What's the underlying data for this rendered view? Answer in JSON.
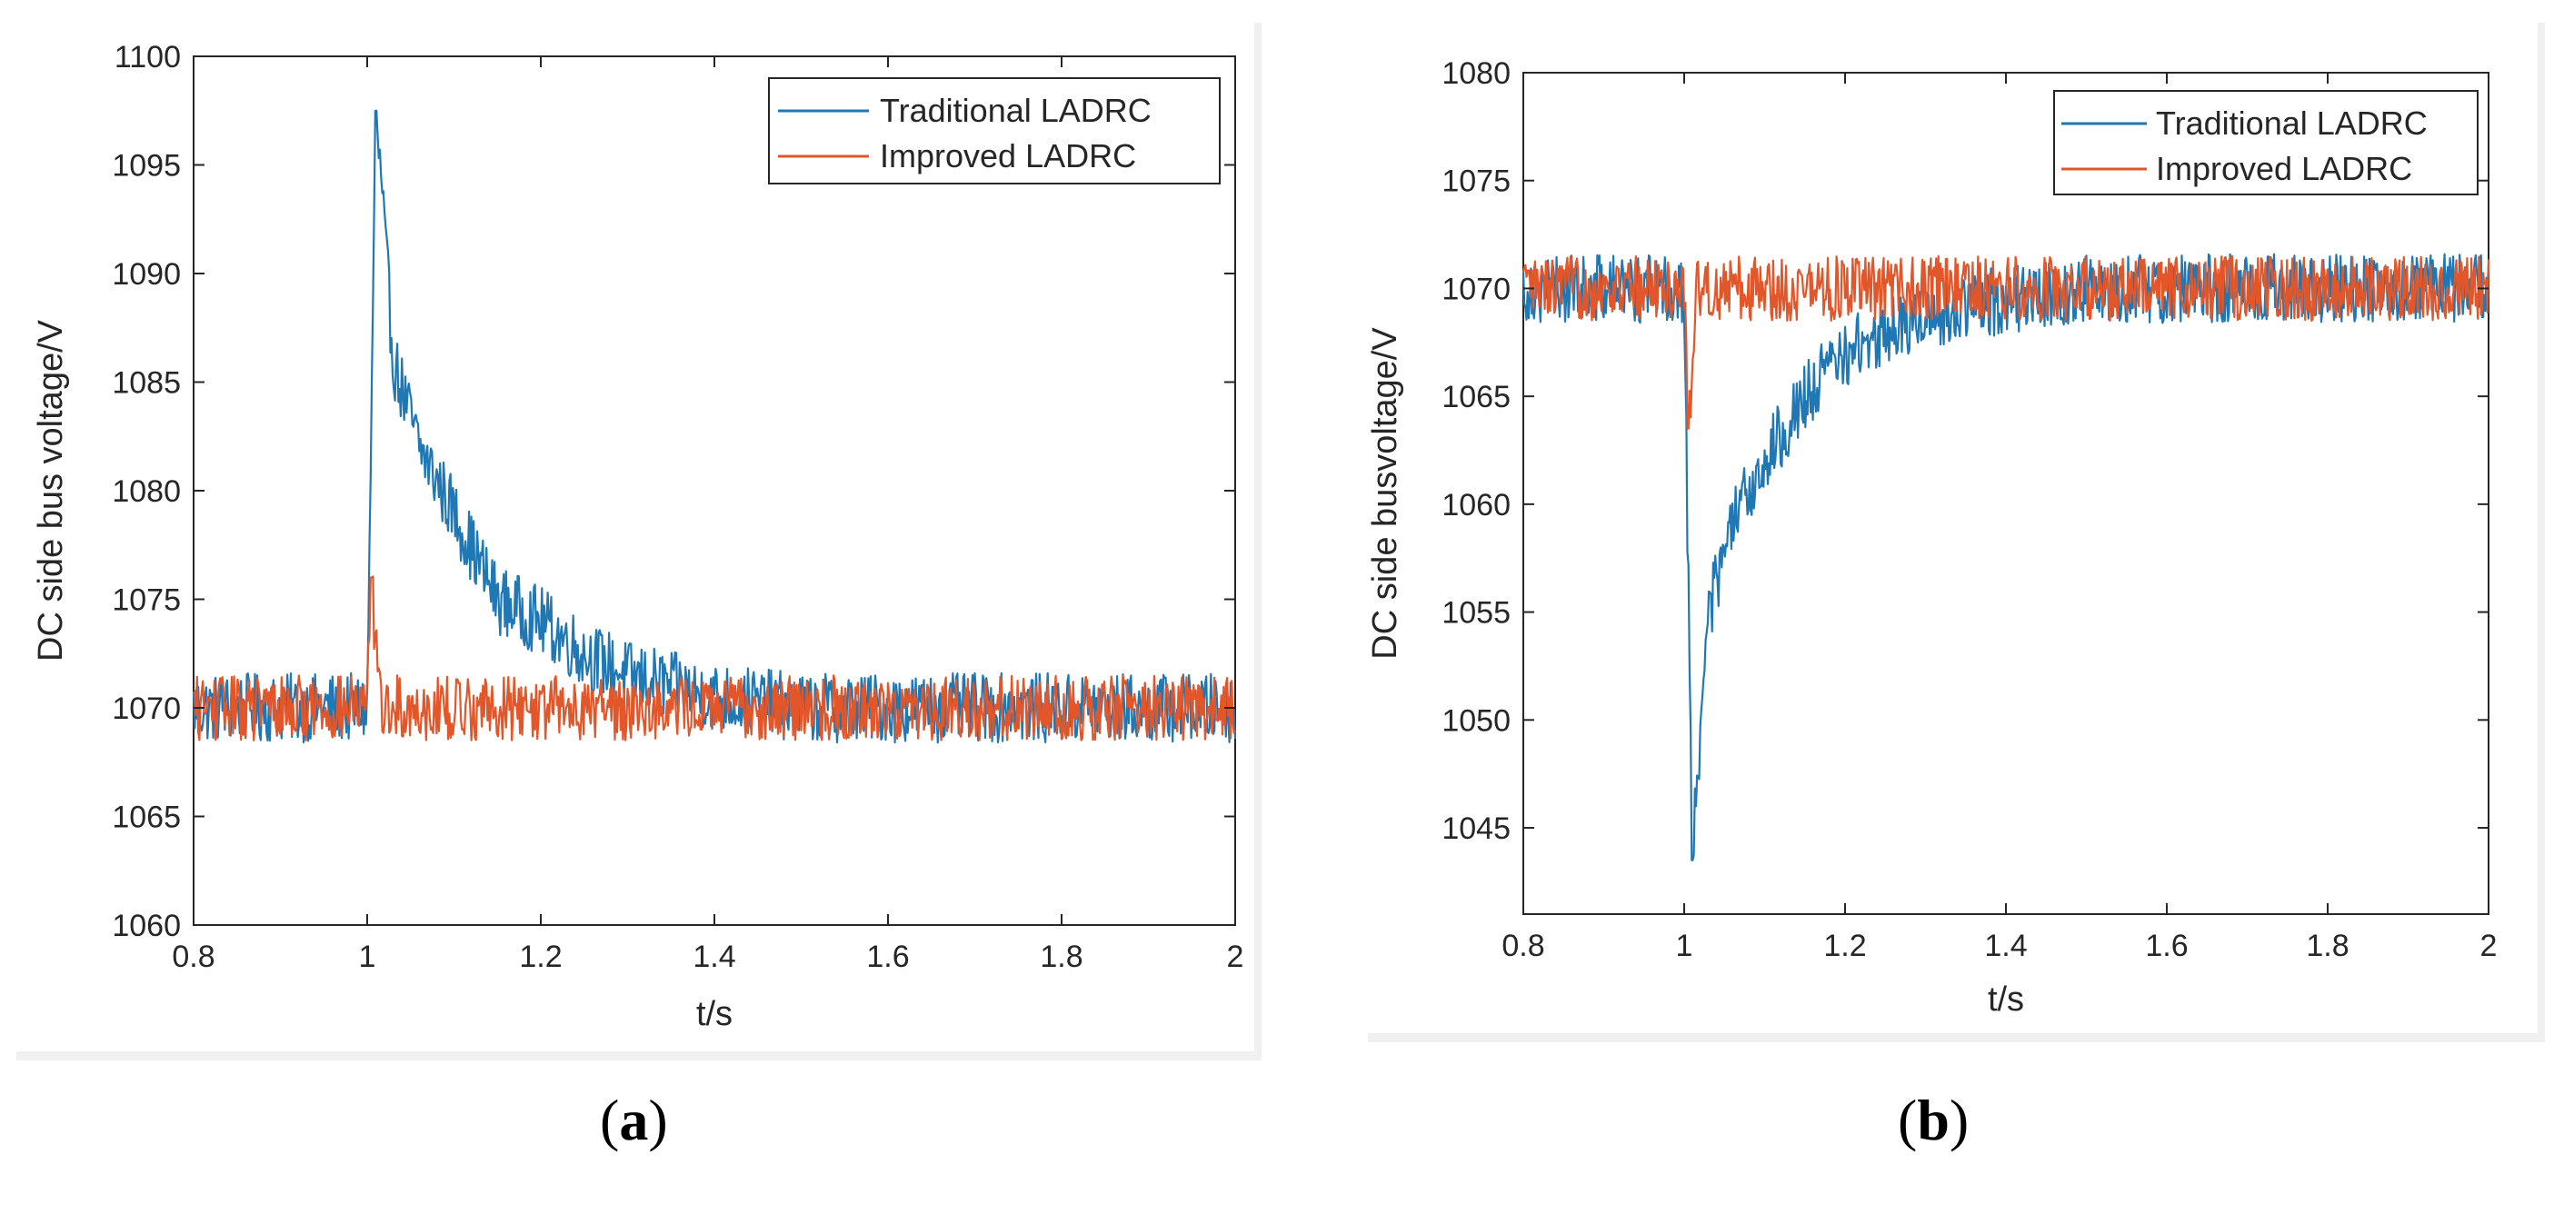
{
  "colors": {
    "traditional": "#1f77b4",
    "improved": "#e2562a",
    "axis": "#262626",
    "panel_bg": "#f0f0f0"
  },
  "captions": {
    "a": {
      "open": "(",
      "letter": "a",
      "close": ")"
    },
    "b": {
      "open": "(",
      "letter": "b",
      "close": ")"
    }
  },
  "chart_data": [
    {
      "id": "a",
      "type": "line",
      "title": "",
      "xlabel": "t/s",
      "ylabel": "DC side bus voltage/V",
      "xlim": [
        0.8,
        2.0
      ],
      "ylim": [
        1060,
        1100
      ],
      "xticks": [
        "0.8",
        "1",
        "1.2",
        "1.4",
        "1.6",
        "1.8",
        "2"
      ],
      "xtick_values": [
        0.8,
        1.0,
        1.2,
        1.4,
        1.6,
        1.8,
        2.0
      ],
      "yticks": [
        "1060",
        "1065",
        "1070",
        "1075",
        "1080",
        "1085",
        "1090",
        "1095",
        "1100"
      ],
      "ytick_values": [
        1060,
        1065,
        1070,
        1075,
        1080,
        1085,
        1090,
        1095,
        1100
      ],
      "legend": [
        "Traditional LADRC",
        "Improved LADRC"
      ],
      "legend_position": "top-right",
      "grid": false,
      "series": [
        {
          "name": "Traditional LADRC",
          "baseline": 1070,
          "noise_amplitude": 1.6,
          "event_time": 1.0,
          "peak_time": 1.01,
          "peak_value": 1097.5,
          "recovery_points": [
            [
              1.03,
              1086
            ],
            [
              1.06,
              1082
            ],
            [
              1.1,
              1079
            ],
            [
              1.15,
              1075
            ],
            [
              1.2,
              1074
            ],
            [
              1.25,
              1072.5
            ],
            [
              1.3,
              1071.5
            ],
            [
              1.4,
              1070.5
            ],
            [
              1.5,
              1070
            ]
          ]
        },
        {
          "name": "Improved LADRC",
          "baseline": 1070,
          "noise_amplitude": 1.5,
          "event_time": 1.0,
          "peak_time": 1.005,
          "peak_value": 1076,
          "recovery_points": [
            [
              1.015,
              1070
            ]
          ]
        }
      ]
    },
    {
      "id": "b",
      "type": "line",
      "title": "",
      "xlabel": "t/s",
      "ylabel": "DC side busvoltage/V",
      "xlim": [
        0.8,
        2.0
      ],
      "ylim": [
        1041,
        1080
      ],
      "xticks": [
        "0.8",
        "1",
        "1.2",
        "1.4",
        "1.6",
        "1.8",
        "2"
      ],
      "xtick_values": [
        0.8,
        1.0,
        1.2,
        1.4,
        1.6,
        1.8,
        2.0
      ],
      "yticks": [
        "1045",
        "1050",
        "1055",
        "1060",
        "1065",
        "1070",
        "1075",
        "1080"
      ],
      "ytick_values": [
        1045,
        1050,
        1055,
        1060,
        1065,
        1070,
        1075,
        1080
      ],
      "legend": [
        "Traditional LADRC",
        "Improved LADRC"
      ],
      "legend_position": "top-right",
      "grid": false,
      "series": [
        {
          "name": "Traditional LADRC",
          "baseline": 1070,
          "noise_amplitude": 1.6,
          "event_time": 1.0,
          "peak_time": 1.01,
          "peak_value": 1043.5,
          "recovery_points": [
            [
              1.03,
              1055
            ],
            [
              1.06,
              1059
            ],
            [
              1.1,
              1062
            ],
            [
              1.15,
              1065
            ],
            [
              1.2,
              1067
            ],
            [
              1.3,
              1068.8
            ],
            [
              1.4,
              1069.5
            ],
            [
              1.5,
              1070
            ]
          ]
        },
        {
          "name": "Improved LADRC",
          "baseline": 1070,
          "noise_amplitude": 1.5,
          "event_time": 1.0,
          "peak_time": 1.005,
          "peak_value": 1063.5,
          "recovery_points": [
            [
              1.015,
              1070
            ]
          ]
        }
      ]
    }
  ]
}
